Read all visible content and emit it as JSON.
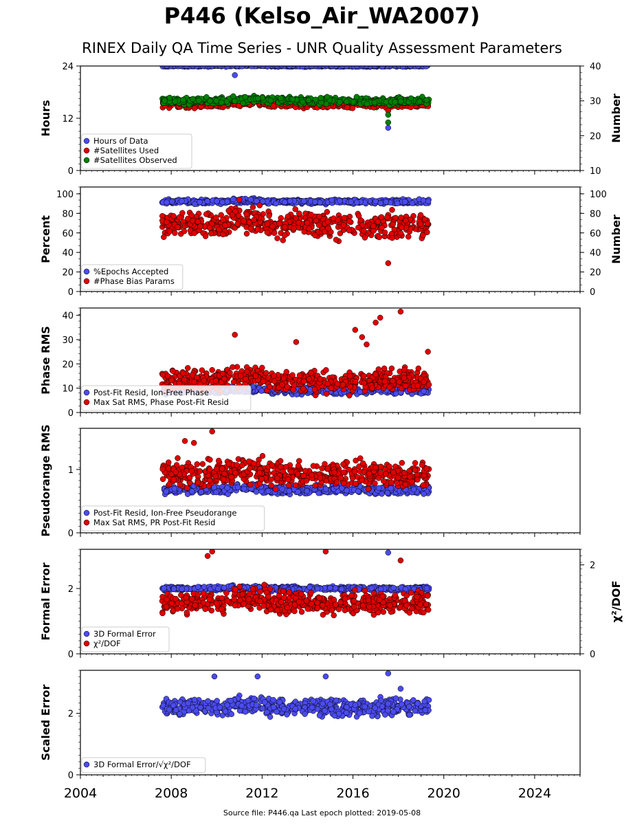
{
  "figure": {
    "title": "P446 (Kelso_Air_WA2007)",
    "subtitle": "RINEX Daily QA Time Series - UNR Quality Assessment Parameters",
    "footer": "Source file: P446.qa Last epoch plotted: 2019-05-08"
  },
  "chart_data": [
    {
      "type": "scatter",
      "ylabel": "Hours",
      "ylim": [
        0,
        24
      ],
      "yticks": [
        "0",
        "12",
        "24"
      ],
      "y2label": "Number",
      "y2lim": [
        10,
        40
      ],
      "y2ticks": [
        "10",
        "20",
        "30",
        "40"
      ],
      "xlim": [
        2004,
        2026
      ],
      "x_range": [
        2007.6,
        2019.35
      ],
      "legend_position": "lower-left",
      "series": [
        {
          "name": "Hours of Data",
          "axis": "left",
          "color": "#4b4bf0",
          "base": 24,
          "spread": 0.15,
          "outliers": [
            [
              2010.8,
              21.9
            ],
            [
              2017.55,
              9.8
            ]
          ]
        },
        {
          "name": "#Satellites Used",
          "axis": "right",
          "color": "#e00000",
          "base": 29,
          "spread": 1.0,
          "outliers": [
            [
              2009.6,
              30.0
            ],
            [
              2017.55,
              27.2
            ]
          ]
        },
        {
          "name": "#Satellites Observed",
          "axis": "right",
          "color": "#008000",
          "base": 30,
          "spread": 0.9,
          "outliers": [
            [
              2017.55,
              23.8
            ],
            [
              2017.55,
              26.0
            ]
          ]
        }
      ]
    },
    {
      "type": "scatter",
      "ylabel": "Percent",
      "ylim": [
        0,
        107
      ],
      "yticks": [
        "0",
        "20",
        "40",
        "60",
        "80",
        "100"
      ],
      "y2label": "Number",
      "y2lim": [
        0,
        107
      ],
      "y2ticks": [
        "0",
        "20",
        "40",
        "60",
        "80",
        "100"
      ],
      "xlim": [
        2004,
        2026
      ],
      "x_range": [
        2007.6,
        2019.35
      ],
      "legend_position": "lower-left",
      "series": [
        {
          "name": "%Epochs Accepted",
          "axis": "left",
          "color": "#4b4bf0",
          "base": 92,
          "spread": 2.0,
          "outliers": []
        },
        {
          "name": "#Phase Bias Params",
          "axis": "right",
          "color": "#e00000",
          "base": 68,
          "spread": 12,
          "outliers": [
            [
              2017.55,
              29
            ],
            [
              2011.0,
              94
            ]
          ]
        }
      ]
    },
    {
      "type": "scatter",
      "ylabel": "Phase RMS",
      "ylim": [
        0,
        43
      ],
      "yticks": [
        "0",
        "10",
        "20",
        "30",
        "40"
      ],
      "xlim": [
        2004,
        2026
      ],
      "x_range": [
        2007.6,
        2019.35
      ],
      "legend_position": "lower-left",
      "series": [
        {
          "name": "Post-Fit Resid, Ion-Free Phase",
          "axis": "left",
          "color": "#4b4bf0",
          "base": 9,
          "spread": 1.2,
          "outliers": []
        },
        {
          "name": "Max Sat RMS, Phase Post-Fit Resid",
          "axis": "left",
          "color": "#e00000",
          "base": 13,
          "spread": 4,
          "outliers": [
            [
              2010.8,
              32
            ],
            [
              2013.5,
              29
            ],
            [
              2016.1,
              34
            ],
            [
              2016.4,
              31
            ],
            [
              2016.6,
              28
            ],
            [
              2017.0,
              37
            ],
            [
              2017.2,
              39
            ],
            [
              2018.1,
              41.5
            ],
            [
              2019.3,
              25
            ]
          ]
        }
      ]
    },
    {
      "type": "scatter",
      "ylabel": "Pseudorange RMS",
      "ylim": [
        0,
        1.65
      ],
      "yticks": [
        "0",
        "1"
      ],
      "xlim": [
        2004,
        2026
      ],
      "x_range": [
        2007.6,
        2019.35
      ],
      "legend_position": "lower-left",
      "series": [
        {
          "name": "Post-Fit Resid, Ion-Free Pseudorange",
          "axis": "left",
          "color": "#4b4bf0",
          "base": 0.68,
          "spread": 0.06,
          "outliers": []
        },
        {
          "name": "Max Sat RMS, PR Post-Fit Resid",
          "axis": "left",
          "color": "#e00000",
          "base": 0.92,
          "spread": 0.18,
          "outliers": [
            [
              2009.8,
              1.6
            ],
            [
              2008.6,
              1.45
            ],
            [
              2009.0,
              1.42
            ]
          ]
        }
      ]
    },
    {
      "type": "scatter",
      "ylabel": "Formal Error",
      "ylim": [
        0,
        3.2
      ],
      "yticks": [
        "0",
        "2"
      ],
      "y2label": "χ²/DOF",
      "y2lim": [
        0,
        2.35
      ],
      "y2ticks": [
        "0",
        "2"
      ],
      "xlim": [
        2004,
        2026
      ],
      "x_range": [
        2007.6,
        2019.35
      ],
      "legend_position": "lower-left",
      "series": [
        {
          "name": "3D Formal Error",
          "axis": "left",
          "color": "#4b4bf0",
          "base": 2.0,
          "spread": 0.06,
          "outliers": [
            [
              2017.55,
              3.1
            ]
          ]
        },
        {
          "name": "χ²/DOF",
          "axis": "right",
          "color": "#e00000",
          "base": 1.15,
          "spread": 0.22,
          "outliers": [
            [
              2009.6,
              2.2
            ],
            [
              2009.8,
              2.3
            ],
            [
              2014.8,
              2.3
            ],
            [
              2018.1,
              2.1
            ]
          ]
        }
      ]
    },
    {
      "type": "scatter",
      "ylabel": "Scaled Error",
      "ylim": [
        0,
        3.4
      ],
      "yticks": [
        "0",
        "2"
      ],
      "xlim": [
        2004,
        2026
      ],
      "x_range": [
        2007.6,
        2019.35
      ],
      "legend_position": "lower-left",
      "series": [
        {
          "name": "3D Formal Error/√χ²/DOF",
          "axis": "left",
          "color": "#4b4bf0",
          "base": 2.2,
          "spread": 0.25,
          "outliers": [
            [
              2017.55,
              3.3
            ],
            [
              2014.8,
              3.2
            ],
            [
              2011.8,
              3.2
            ],
            [
              2009.9,
              3.2
            ],
            [
              2018.1,
              2.8
            ]
          ]
        }
      ]
    }
  ],
  "xaxis": {
    "ticks": [
      2004,
      2008,
      2012,
      2016,
      2020,
      2024
    ],
    "tick_labels": [
      "2004",
      "2008",
      "2012",
      "2016",
      "2020",
      "2024"
    ]
  }
}
